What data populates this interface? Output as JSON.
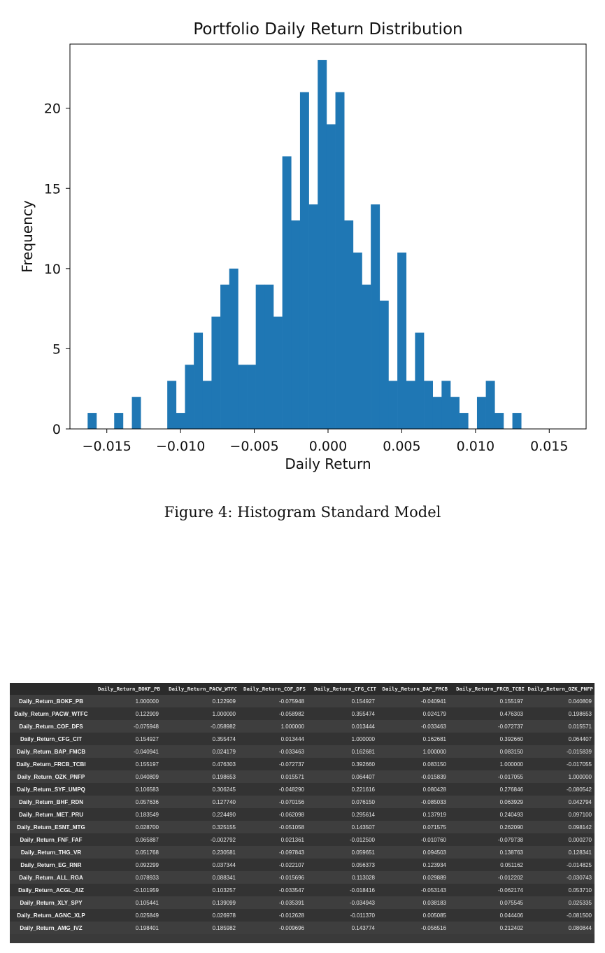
{
  "chart_data": {
    "type": "bar",
    "title": "Portfolio Daily Return Distribution",
    "xlabel": "Daily Return",
    "ylabel": "Frequency",
    "xlim": [
      -0.0175,
      0.0175
    ],
    "ylim": [
      0,
      24
    ],
    "x_ticks": [
      -0.015,
      -0.01,
      -0.005,
      0.0,
      0.005,
      0.01,
      0.015
    ],
    "x_tick_labels": [
      "−0.015",
      "−0.010",
      "−0.005",
      "0.000",
      "0.005",
      "0.010",
      "0.015"
    ],
    "y_ticks": [
      0,
      5,
      10,
      15,
      20
    ],
    "y_tick_labels": [
      "0",
      "5",
      "10",
      "15",
      "20"
    ],
    "bin_start": -0.0163,
    "bin_width": 0.0006,
    "values": [
      1,
      0,
      0,
      1,
      0,
      2,
      0,
      0,
      0,
      3,
      1,
      4,
      6,
      3,
      7,
      9,
      10,
      4,
      4,
      9,
      9,
      7,
      17,
      13,
      21,
      14,
      23,
      19,
      21,
      13,
      11,
      9,
      14,
      8,
      3,
      11,
      3,
      6,
      3,
      2,
      3,
      2,
      1,
      0,
      2,
      3,
      1,
      0,
      1
    ],
    "bar_color": "#1f77b4",
    "grid": false
  },
  "caption": "Figure 4: Histogram Standard Model",
  "table": {
    "columns": [
      "Daily_Return_BOKF_PB",
      "Daily_Return_PACW_WTFC",
      "Daily_Return_COF_DFS",
      "Daily_Return_CFG_CIT",
      "Daily_Return_BAP_FMCB",
      "Daily_Return_FRCB_TCBI",
      "Daily_Return_OZK_PNFP"
    ],
    "rows": [
      {
        "label": "Daily_Return_BOKF_PB",
        "values": [
          "1.000000",
          "0.122909",
          "-0.075948",
          "0.154927",
          "-0.040941",
          "0.155197",
          "0.040809"
        ]
      },
      {
        "label": "Daily_Return_PACW_WTFC",
        "values": [
          "0.122909",
          "1.000000",
          "-0.058982",
          "0.355474",
          "0.024179",
          "0.476303",
          "0.198653"
        ]
      },
      {
        "label": "Daily_Return_COF_DFS",
        "values": [
          "-0.075948",
          "-0.058982",
          "1.000000",
          "0.013444",
          "-0.033463",
          "-0.072737",
          "0.015571"
        ]
      },
      {
        "label": "Daily_Return_CFG_CIT",
        "values": [
          "0.154927",
          "0.355474",
          "0.013444",
          "1.000000",
          "0.162681",
          "0.392660",
          "0.064407"
        ]
      },
      {
        "label": "Daily_Return_BAP_FMCB",
        "values": [
          "-0.040941",
          "0.024179",
          "-0.033463",
          "0.162681",
          "1.000000",
          "0.083150",
          "-0.015839"
        ]
      },
      {
        "label": "Daily_Return_FRCB_TCBI",
        "values": [
          "0.155197",
          "0.476303",
          "-0.072737",
          "0.392660",
          "0.083150",
          "1.000000",
          "-0.017055"
        ]
      },
      {
        "label": "Daily_Return_OZK_PNFP",
        "values": [
          "0.040809",
          "0.198653",
          "0.015571",
          "0.064407",
          "-0.015839",
          "-0.017055",
          "1.000000"
        ]
      },
      {
        "label": "Daily_Return_SYF_UMPQ",
        "values": [
          "0.106583",
          "0.306245",
          "-0.048290",
          "0.221616",
          "0.080428",
          "0.276846",
          "-0.080542"
        ]
      },
      {
        "label": "Daily_Return_BHF_RDN",
        "values": [
          "0.057636",
          "0.127740",
          "-0.070156",
          "0.076150",
          "-0.085033",
          "0.063929",
          "0.042794"
        ]
      },
      {
        "label": "Daily_Return_MET_PRU",
        "values": [
          "0.183549",
          "0.224490",
          "-0.062098",
          "0.295614",
          "0.137919",
          "0.240493",
          "0.097100"
        ]
      },
      {
        "label": "Daily_Return_ESNT_MTG",
        "values": [
          "0.028700",
          "0.325155",
          "-0.051058",
          "0.143507",
          "0.071575",
          "0.262090",
          "0.098142"
        ]
      },
      {
        "label": "Daily_Return_FNF_FAF",
        "values": [
          "0.065887",
          "-0.002792",
          "0.021361",
          "-0.012500",
          "-0.010760",
          "-0.079738",
          "0.000270"
        ]
      },
      {
        "label": "Daily_Return_THG_VR",
        "values": [
          "0.051768",
          "0.230581",
          "-0.097843",
          "0.059651",
          "0.094503",
          "0.138763",
          "0.128341"
        ]
      },
      {
        "label": "Daily_Return_EG_RNR",
        "values": [
          "0.092299",
          "0.037344",
          "-0.022107",
          "0.056373",
          "0.123934",
          "0.051162",
          "-0.014825"
        ]
      },
      {
        "label": "Daily_Return_ALL_RGA",
        "values": [
          "0.078933",
          "0.088341",
          "-0.015696",
          "0.113028",
          "0.029889",
          "-0.012202",
          "-0.030743"
        ]
      },
      {
        "label": "Daily_Return_ACGL_AIZ",
        "values": [
          "-0.101959",
          "0.103257",
          "-0.033547",
          "-0.018416",
          "-0.053143",
          "-0.062174",
          "0.053710"
        ]
      },
      {
        "label": "Daily_Return_XLY_SPY",
        "values": [
          "0.105441",
          "0.139099",
          "-0.035391",
          "-0.034943",
          "0.038183",
          "0.075545",
          "0.025335"
        ]
      },
      {
        "label": "Daily_Return_AGNC_XLP",
        "values": [
          "0.025849",
          "0.026978",
          "-0.012628",
          "-0.011370",
          "0.005085",
          "0.044406",
          "-0.081500"
        ]
      },
      {
        "label": "Daily_Return_AMG_IVZ",
        "values": [
          "0.198401",
          "0.185982",
          "-0.009696",
          "0.143774",
          "-0.056516",
          "0.212402",
          "0.080844"
        ]
      }
    ]
  }
}
